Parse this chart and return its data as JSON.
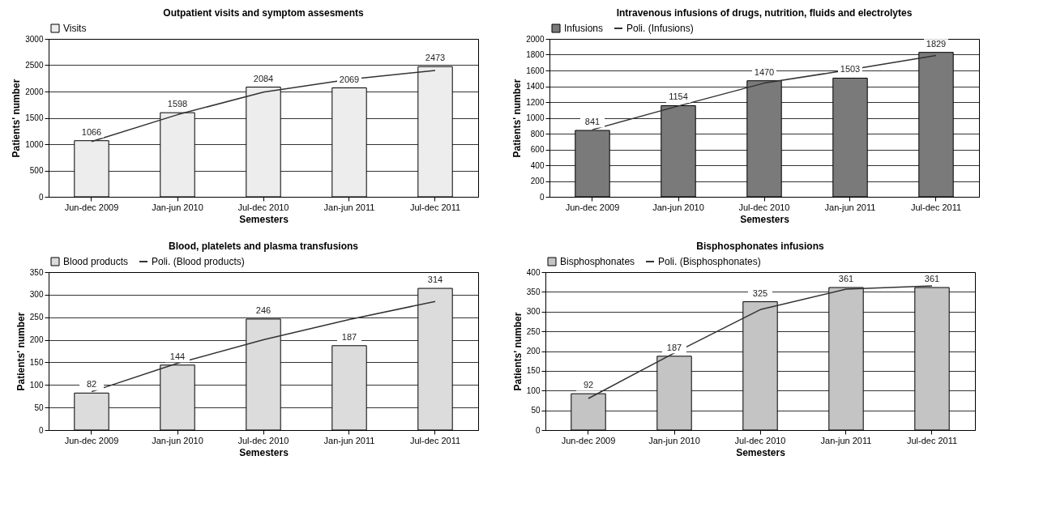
{
  "chart_data": [
    {
      "type": "bar",
      "title": "Outpatient visits and symptom assesments",
      "xlabel": "Semesters",
      "ylabel": "Patients' number",
      "categories": [
        "Jun-dec 2009",
        "Jan-jun 2010",
        "Jul-dec 2010",
        "Jan-jun 2011",
        "Jul-dec 2011"
      ],
      "series": [
        {
          "name": "Visits",
          "color": "#ededed",
          "values": [
            1066,
            1598,
            2084,
            2069,
            2473
          ],
          "value_labels": [
            "1066",
            "1598",
            "2084",
            "2069",
            "2473"
          ]
        },
        {
          "type": "line",
          "color": "#333333",
          "values": [
            1050,
            1560,
            1990,
            2230,
            2400
          ]
        }
      ],
      "ylim": [
        0,
        3000
      ],
      "yticks": [
        0,
        500,
        1000,
        1500,
        2000,
        2500,
        3000
      ],
      "grid": "y",
      "legend": "top"
    },
    {
      "type": "bar",
      "title": "Intravenous infusions of drugs, nutrition, fluids and electrolytes",
      "xlabel": "Semesters",
      "ylabel": "Patients' number",
      "categories": [
        "Jun-dec 2009",
        "Jan-jun 2010",
        "Jul-dec 2010",
        "Jan-jun 2011",
        "Jul-dec 2011"
      ],
      "series": [
        {
          "name": "Infusions",
          "color": "#7a7a7a",
          "values": [
            841,
            1154,
            1470,
            1503,
            1829
          ],
          "value_labels": [
            "841",
            "1154",
            "1470",
            "1503",
            "1829"
          ]
        },
        {
          "type": "line",
          "name": "Poli. (Infusions)",
          "color": "#333333",
          "values": [
            850,
            1150,
            1440,
            1610,
            1790
          ]
        }
      ],
      "ylim": [
        0,
        2000
      ],
      "yticks": [
        0,
        200,
        400,
        600,
        800,
        1000,
        1200,
        1400,
        1600,
        1800,
        2000
      ],
      "grid": "y",
      "legend": "top"
    },
    {
      "type": "bar",
      "title": "Blood, platelets and plasma transfusions",
      "xlabel": "Semesters",
      "ylabel": "Patients' number",
      "categories": [
        "Jun-dec 2009",
        "Jan-jun 2010",
        "Jul-dec 2010",
        "Jan-jun 2011",
        "Jul-dec 2011"
      ],
      "series": [
        {
          "name": "Blood products",
          "color": "#dcdcdc",
          "values": [
            82,
            144,
            246,
            187,
            314
          ],
          "value_labels": [
            "82",
            "144",
            "246",
            "187",
            "314"
          ]
        },
        {
          "type": "line",
          "name": "Poli. (Blood products)",
          "color": "#333333",
          "values": [
            85,
            148,
            200,
            245,
            285
          ]
        }
      ],
      "ylim": [
        0,
        350
      ],
      "yticks": [
        0,
        50,
        100,
        150,
        200,
        250,
        300,
        350
      ],
      "grid": "y",
      "legend": "top"
    },
    {
      "type": "bar",
      "title": "Bisphosphonates infusions",
      "xlabel": "Semesters",
      "ylabel": "Patients' number",
      "categories": [
        "Jun-dec 2009",
        "Jan-jun 2010",
        "Jul-dec 2010",
        "Jan-jun 2011",
        "Jul-dec 2011"
      ],
      "series": [
        {
          "name": "Bisphosphonates",
          "color": "#c4c4c4",
          "values": [
            92,
            187,
            325,
            361,
            361
          ],
          "value_labels": [
            "92",
            "187",
            "325",
            "361",
            "361"
          ]
        },
        {
          "type": "line",
          "name": "Poli. (Bisphosphonates)",
          "color": "#333333",
          "values": [
            80,
            195,
            305,
            357,
            365
          ]
        }
      ],
      "ylim": [
        0,
        400
      ],
      "yticks": [
        0,
        50,
        100,
        150,
        200,
        250,
        300,
        350,
        400
      ],
      "grid": "y",
      "legend": "top"
    }
  ]
}
